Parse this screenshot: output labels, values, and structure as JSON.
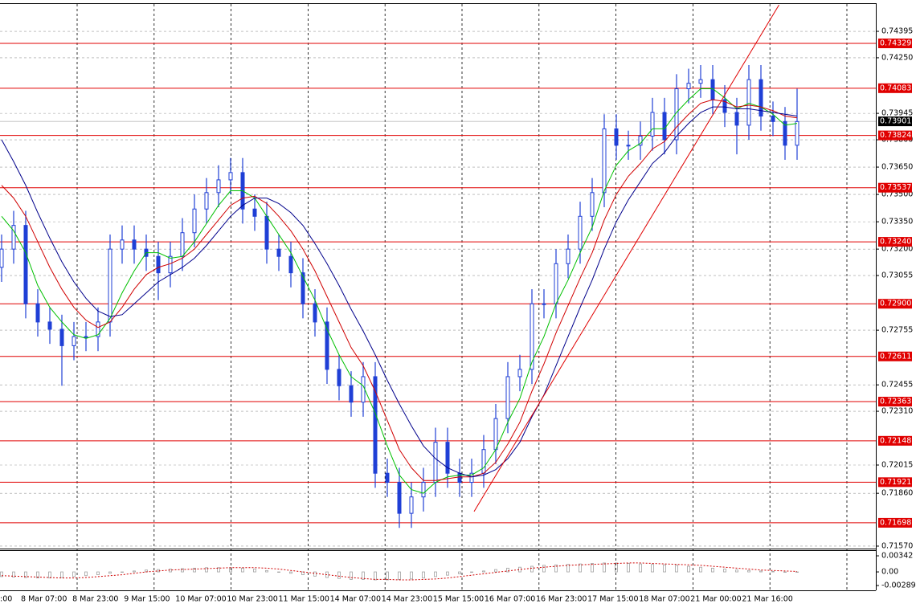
{
  "chart_data": {
    "type": "candlestick",
    "candles": {
      "open": [
        0.731,
        0.732,
        0.7333,
        0.729,
        0.728,
        0.7276,
        0.7267,
        0.7272,
        0.7272,
        0.728,
        0.732,
        0.7325,
        0.732,
        0.7316,
        0.7307,
        0.7316,
        0.7329,
        0.7342,
        0.7351,
        0.7358,
        0.7362,
        0.7342,
        0.7338,
        0.732,
        0.7316,
        0.7307,
        0.729,
        0.728,
        0.7254,
        0.7245,
        0.7236,
        0.725,
        0.7197,
        0.7192,
        0.7175,
        0.7184,
        0.7192,
        0.7214,
        0.7197,
        0.7192,
        0.7197,
        0.721,
        0.7227,
        0.725,
        0.7254,
        0.729,
        0.729,
        0.7312,
        0.732,
        0.7338,
        0.7351,
        0.7386,
        0.7377,
        0.7377,
        0.7382,
        0.7395,
        0.738,
        0.7408,
        0.7411,
        0.7413,
        0.7402,
        0.7395,
        0.7388,
        0.7413,
        0.7393,
        0.739,
        0.7377
      ],
      "high": [
        0.7328,
        0.7341,
        0.7341,
        0.7298,
        0.7288,
        0.7284,
        0.728,
        0.728,
        0.7288,
        0.7328,
        0.7333,
        0.7333,
        0.7328,
        0.7324,
        0.7324,
        0.7337,
        0.735,
        0.7359,
        0.7366,
        0.737,
        0.737,
        0.735,
        0.7346,
        0.7328,
        0.7324,
        0.7315,
        0.7298,
        0.7288,
        0.7262,
        0.7253,
        0.7258,
        0.7258,
        0.7205,
        0.72,
        0.7192,
        0.72,
        0.7222,
        0.7222,
        0.7205,
        0.7205,
        0.7218,
        0.7235,
        0.7258,
        0.7262,
        0.7298,
        0.7298,
        0.732,
        0.7328,
        0.7346,
        0.7359,
        0.7394,
        0.7394,
        0.7385,
        0.739,
        0.7403,
        0.7403,
        0.7416,
        0.7419,
        0.7421,
        0.7421,
        0.741,
        0.7403,
        0.7421,
        0.7421,
        0.7401,
        0.7398,
        0.7408
      ],
      "low": [
        0.7302,
        0.7312,
        0.7282,
        0.7272,
        0.7268,
        0.7245,
        0.7259,
        0.7264,
        0.7264,
        0.7272,
        0.7312,
        0.7312,
        0.7308,
        0.7292,
        0.7299,
        0.7308,
        0.7321,
        0.7334,
        0.7343,
        0.735,
        0.7334,
        0.733,
        0.7312,
        0.7308,
        0.7299,
        0.7282,
        0.7272,
        0.7246,
        0.7237,
        0.7228,
        0.7228,
        0.7189,
        0.7184,
        0.7167,
        0.7167,
        0.7176,
        0.7184,
        0.7189,
        0.7184,
        0.7184,
        0.7189,
        0.7202,
        0.7219,
        0.7242,
        0.7246,
        0.7282,
        0.7282,
        0.7304,
        0.7312,
        0.733,
        0.7343,
        0.7369,
        0.7369,
        0.7369,
        0.7374,
        0.7372,
        0.7372,
        0.74,
        0.7403,
        0.7394,
        0.7387,
        0.7372,
        0.738,
        0.7385,
        0.7382,
        0.7369,
        0.7369
      ],
      "close": [
        0.732,
        0.7333,
        0.729,
        0.728,
        0.7276,
        0.7267,
        0.7272,
        0.7272,
        0.728,
        0.732,
        0.7325,
        0.732,
        0.7316,
        0.7307,
        0.7316,
        0.7329,
        0.7342,
        0.7351,
        0.7358,
        0.7362,
        0.7342,
        0.7338,
        0.732,
        0.7316,
        0.7307,
        0.729,
        0.728,
        0.7254,
        0.7245,
        0.7236,
        0.725,
        0.7197,
        0.7192,
        0.7175,
        0.7184,
        0.7192,
        0.7214,
        0.7197,
        0.7192,
        0.7197,
        0.721,
        0.7227,
        0.725,
        0.7254,
        0.729,
        0.729,
        0.7312,
        0.732,
        0.7338,
        0.7351,
        0.7386,
        0.7377,
        0.7377,
        0.7382,
        0.7395,
        0.738,
        0.7408,
        0.7411,
        0.7413,
        0.7402,
        0.7395,
        0.7388,
        0.7413,
        0.7393,
        0.739,
        0.7377,
        0.739
      ],
      "color": "#1f3fd6"
    },
    "series": [
      {
        "color": "#00c000",
        "values": [
          0.7338,
          0.733,
          0.7318,
          0.73,
          0.7288,
          0.728,
          0.7273,
          0.7271,
          0.7273,
          0.7282,
          0.7296,
          0.7308,
          0.7318,
          0.7318,
          0.7315,
          0.7316,
          0.7324,
          0.7334,
          0.7344,
          0.7352,
          0.7352,
          0.7348,
          0.7338,
          0.7328,
          0.7318,
          0.7305,
          0.7292,
          0.7276,
          0.7262,
          0.725,
          0.7245,
          0.723,
          0.7212,
          0.7196,
          0.7188,
          0.7186,
          0.7192,
          0.7195,
          0.7196,
          0.7196,
          0.72,
          0.721,
          0.7225,
          0.7238,
          0.7258,
          0.7272,
          0.729,
          0.7303,
          0.7318,
          0.7332,
          0.7352,
          0.7366,
          0.7374,
          0.7378,
          0.7386,
          0.7386,
          0.7395,
          0.7402,
          0.7408,
          0.7408,
          0.7403,
          0.7397,
          0.74,
          0.7398,
          0.7394,
          0.7388,
          0.7389
        ]
      },
      {
        "color": "#d00000",
        "values": [
          0.7355,
          0.7348,
          0.7338,
          0.7324,
          0.731,
          0.7298,
          0.7288,
          0.7281,
          0.7277,
          0.728,
          0.7288,
          0.7298,
          0.7306,
          0.731,
          0.7312,
          0.7315,
          0.732,
          0.7328,
          0.7336,
          0.7344,
          0.7348,
          0.7349,
          0.7345,
          0.7338,
          0.733,
          0.732,
          0.7308,
          0.7294,
          0.728,
          0.7266,
          0.7256,
          0.7242,
          0.7226,
          0.721,
          0.72,
          0.7193,
          0.7193,
          0.7194,
          0.7195,
          0.7195,
          0.7197,
          0.7203,
          0.7213,
          0.7225,
          0.7242,
          0.7257,
          0.7274,
          0.7289,
          0.7304,
          0.7318,
          0.7336,
          0.735,
          0.736,
          0.7367,
          0.7375,
          0.7379,
          0.7387,
          0.7394,
          0.74,
          0.7402,
          0.7401,
          0.7398,
          0.7399,
          0.7398,
          0.7396,
          0.7393,
          0.7392
        ]
      },
      {
        "color": "#00008b",
        "values": [
          0.738,
          0.7368,
          0.7355,
          0.734,
          0.7326,
          0.7313,
          0.7302,
          0.7293,
          0.7286,
          0.7283,
          0.7284,
          0.729,
          0.7296,
          0.7302,
          0.7306,
          0.731,
          0.7315,
          0.7322,
          0.733,
          0.7338,
          0.7344,
          0.7348,
          0.7348,
          0.7345,
          0.734,
          0.7333,
          0.7323,
          0.7312,
          0.73,
          0.7287,
          0.7275,
          0.7262,
          0.7248,
          0.7235,
          0.7223,
          0.7212,
          0.7205,
          0.72,
          0.7197,
          0.7195,
          0.7196,
          0.7199,
          0.7205,
          0.7214,
          0.7228,
          0.724,
          0.7256,
          0.7272,
          0.7288,
          0.7303,
          0.732,
          0.7335,
          0.7347,
          0.7357,
          0.7367,
          0.7373,
          0.7382,
          0.7389,
          0.7395,
          0.7398,
          0.7398,
          0.7397,
          0.7397,
          0.7396,
          0.7395,
          0.7394,
          0.7393
        ]
      }
    ],
    "trendline": {
      "color": "#e00000",
      "x": [
        39.2,
        64.5
      ],
      "y": [
        0.7176,
        0.7454
      ]
    },
    "ylim": [
      0.71561,
      0.74545
    ],
    "yticks": [
      {
        "value": 0.74395,
        "label": "0.74395"
      },
      {
        "value": 0.7425,
        "label": "0.74250"
      },
      {
        "value": 0.73945,
        "label": "0.73945"
      },
      {
        "value": 0.738,
        "label": "0.73800"
      },
      {
        "value": 0.7365,
        "label": "0.73650"
      },
      {
        "value": 0.735,
        "label": "0.73500"
      },
      {
        "value": 0.7335,
        "label": "0.73350"
      },
      {
        "value": 0.732,
        "label": "0.73200"
      },
      {
        "value": 0.73055,
        "label": "0.73055"
      },
      {
        "value": 0.72755,
        "label": "0.72755"
      },
      {
        "value": 0.72455,
        "label": "0.72455"
      },
      {
        "value": 0.7231,
        "label": "0.72310"
      },
      {
        "value": 0.72015,
        "label": "0.72015"
      },
      {
        "value": 0.7186,
        "label": "0.71860"
      },
      {
        "value": 0.7157,
        "label": "0.71570"
      }
    ],
    "levels": {
      "color": "#e00000",
      "values": [
        {
          "value": 0.74329,
          "label": "0.74329"
        },
        {
          "value": 0.74083,
          "label": "0.74083"
        },
        {
          "value": 0.73824,
          "label": "0.73824"
        },
        {
          "value": 0.73537,
          "label": "0.73537"
        },
        {
          "value": 0.7324,
          "label": "0.73240"
        },
        {
          "value": 0.729,
          "label": "0.72900"
        },
        {
          "value": 0.72611,
          "label": "0.72611"
        },
        {
          "value": 0.72363,
          "label": "0.72363"
        },
        {
          "value": 0.72148,
          "label": "0.72148"
        },
        {
          "value": 0.71921,
          "label": "0.71921"
        },
        {
          "value": 0.71698,
          "label": "0.71698"
        }
      ]
    },
    "current_price": 0.73901,
    "xlabels": [
      ":00",
      "8 Mar 07:00",
      "8 Mar 23:00",
      "9 Mar 15:00",
      "10 Mar 07:00",
      "10 Mar 23:00",
      "11 Mar 15:00",
      "14 Mar 07:00",
      "14 Mar 23:00",
      "15 Mar 15:00",
      "16 Mar 07:00",
      "16 Mar 23:00",
      "17 Mar 15:00",
      "18 Mar 07:00",
      "21 Mar 00:00",
      "21 Mar 16:00"
    ],
    "oscillator": {
      "ylim": [
        -0.00392,
        0.00445
      ],
      "yticks": [
        0.00342,
        {
          "value": 0,
          "label": "0.00"
        },
        -0.002894
      ],
      "histogram": {
        "color": "#a0a0a0",
        "values": [
          -0.001,
          -0.0011,
          -0.0012,
          -0.0013,
          -0.0013,
          -0.0012,
          -0.001,
          -0.0008,
          -0.0006,
          -0.0003,
          0.0,
          0.0002,
          0.0004,
          0.0005,
          0.0006,
          0.0007,
          0.0008,
          0.0009,
          0.0009,
          0.0009,
          0.0008,
          0.0006,
          0.0003,
          0.0,
          -0.0003,
          -0.0006,
          -0.0009,
          -0.0012,
          -0.0014,
          -0.0016,
          -0.0016,
          -0.0017,
          -0.0017,
          -0.0016,
          -0.0015,
          -0.0013,
          -0.001,
          -0.0007,
          -0.0004,
          -0.0001,
          0.0002,
          0.0005,
          0.0008,
          0.001,
          0.0012,
          0.0014,
          0.0015,
          0.0016,
          0.0017,
          0.0018,
          0.0019,
          0.0019,
          0.0018,
          0.0017,
          0.0016,
          0.0015,
          0.0014,
          0.0012,
          0.001,
          0.0008,
          0.0006,
          0.0004,
          0.0003,
          0.0002,
          0.0001,
          0.0,
          0.0
        ]
      },
      "signal": {
        "color": "#d00000",
        "values": [
          -0.0008,
          -0.0009,
          -0.001,
          -0.0011,
          -0.0012,
          -0.0013,
          -0.0013,
          -0.0012,
          -0.001,
          -0.0008,
          -0.0006,
          -0.0003,
          0.0,
          0.0002,
          0.0004,
          0.0005,
          0.0006,
          0.0007,
          0.0008,
          0.0009,
          0.0009,
          0.0009,
          0.0008,
          0.0006,
          0.0003,
          0.0,
          -0.0003,
          -0.0006,
          -0.0009,
          -0.0012,
          -0.0014,
          -0.0016,
          -0.0016,
          -0.0017,
          -0.0017,
          -0.0016,
          -0.0015,
          -0.0013,
          -0.001,
          -0.0007,
          -0.0004,
          -0.0001,
          0.0002,
          0.0005,
          0.0008,
          0.001,
          0.0012,
          0.0014,
          0.0015,
          0.0016,
          0.0017,
          0.0018,
          0.0019,
          0.0019,
          0.0018,
          0.0017,
          0.0016,
          0.0015,
          0.0014,
          0.0012,
          0.001,
          0.0008,
          0.0006,
          0.0004,
          0.0003,
          0.0002,
          0.0001
        ]
      }
    }
  }
}
